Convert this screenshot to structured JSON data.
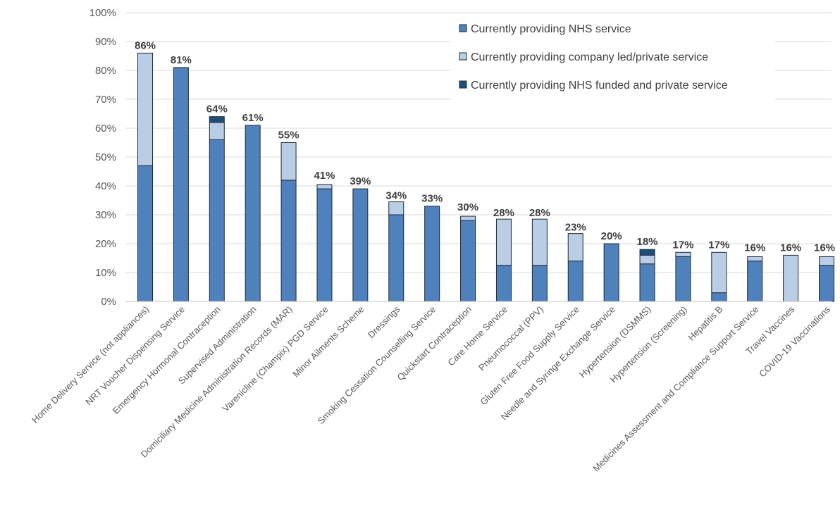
{
  "chart_data": {
    "type": "bar",
    "stacked": true,
    "title": "",
    "xlabel": "",
    "ylabel": "",
    "ylim": [
      0,
      100
    ],
    "y_ticks": [
      "0%",
      "10%",
      "20%",
      "30%",
      "40%",
      "50%",
      "60%",
      "70%",
      "80%",
      "90%",
      "100%"
    ],
    "grid": true,
    "legend_position": "top-right",
    "categories": [
      "Home Delivery Service (not appliances)",
      "NRT Voucher Dispensing Service",
      "Emergency Hormonal Contraception",
      "Supervised Administration",
      "Domiciliary Medicine Administration Records (MAR)",
      "Varenicline (Champix) PGD Service",
      "Minor Ailments Scheme",
      "Dressings",
      "Smoking Cessation Counselling Service",
      "Quickstart Contraception",
      "Care Home Service",
      "Pneumococcal (PPV)",
      "Gluten Free Food Supply Service",
      "Needle and Syringe Exchange Service",
      "Hypertension (DSMMS)",
      "Hypertension (Screening)",
      "Hepatitis B",
      "Medicines Assessment and Compliance Support Service",
      "Travel Vaccines",
      "COVID-19 Vaccinations"
    ],
    "series": [
      {
        "name": "Currently providing NHS service",
        "color": "#4f81bd",
        "values": [
          47,
          81,
          56,
          61,
          42,
          39,
          39,
          30,
          33,
          28,
          12.5,
          12.5,
          14,
          20,
          13,
          15.5,
          3,
          14,
          0,
          12.5
        ]
      },
      {
        "name": "Currently providing company led/private service",
        "color": "#b9cde5",
        "values": [
          39,
          0,
          6,
          0,
          13,
          1.5,
          0,
          4.5,
          0,
          1.5,
          16,
          16,
          9.5,
          0,
          3,
          1.5,
          14,
          1.5,
          16,
          3
        ]
      },
      {
        "name": "Currently providing NHS funded and private service",
        "color": "#1f4e79",
        "values": [
          0,
          0,
          2,
          0,
          0,
          0,
          0,
          0,
          0,
          0,
          0,
          0,
          0,
          0,
          2,
          0,
          0,
          0,
          0,
          0
        ]
      }
    ],
    "totals": [
      86,
      81,
      64,
      61,
      55,
      41,
      39,
      34,
      33,
      30,
      28,
      28,
      23,
      20,
      18,
      17,
      17,
      16,
      16,
      16
    ],
    "data_labels": [
      "86%",
      "81%",
      "64%",
      "61%",
      "55%",
      "41%",
      "39%",
      "34%",
      "33%",
      "30%",
      "28%",
      "28%",
      "23%",
      "20%",
      "18%",
      "17%",
      "17%",
      "16%",
      "16%",
      "16%"
    ]
  }
}
